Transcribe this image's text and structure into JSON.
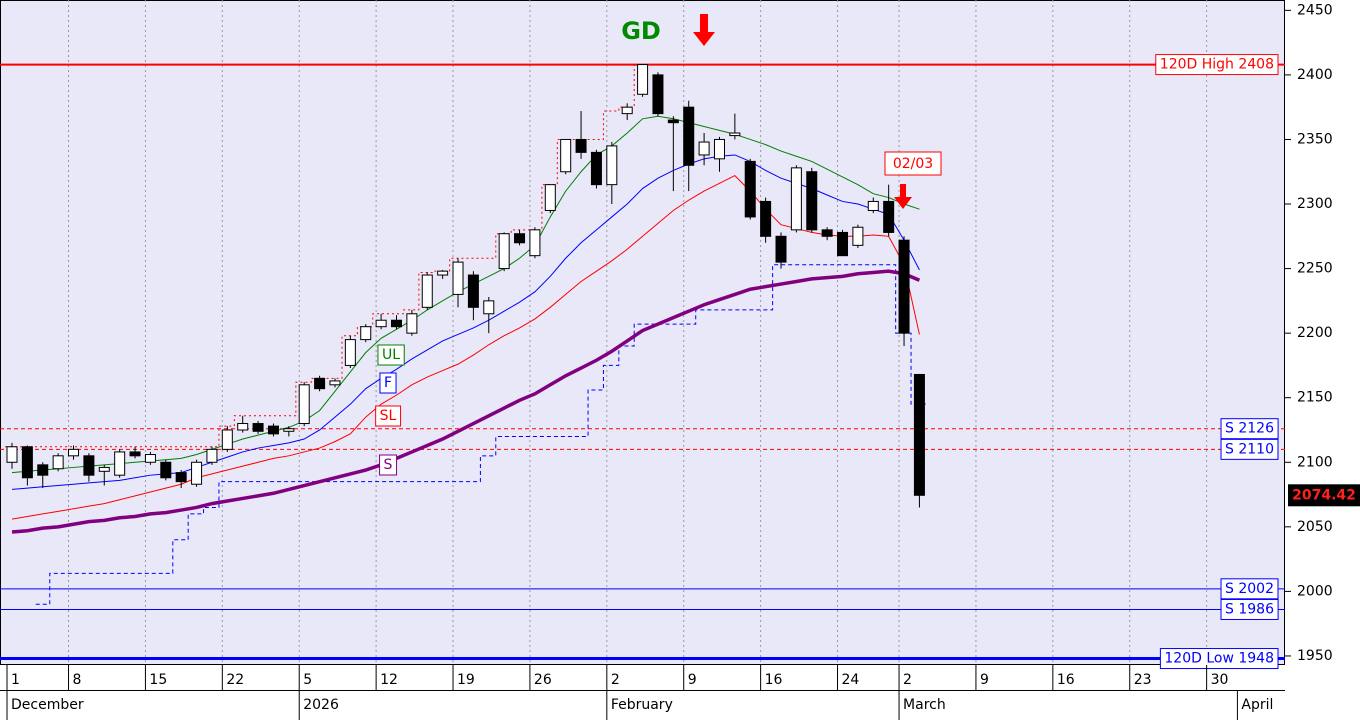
{
  "chart_data": {
    "type": "candlestick",
    "categories": [
      "1",
      null,
      null,
      null,
      "8",
      null,
      null,
      null,
      null,
      "15",
      null,
      null,
      null,
      null,
      "22",
      null,
      null,
      null,
      null,
      "5",
      null,
      null,
      null,
      null,
      "12",
      null,
      null,
      null,
      null,
      "19",
      null,
      null,
      null,
      null,
      "26",
      null,
      null,
      null,
      null,
      "2",
      null,
      null,
      null,
      null,
      "9",
      null,
      null,
      null,
      null,
      "16",
      null,
      null,
      null,
      null,
      "24",
      null,
      null,
      null,
      "2",
      null,
      null,
      null,
      null,
      "9",
      null,
      null,
      null,
      null,
      "16",
      null,
      null,
      null,
      null,
      "23",
      null,
      null,
      null,
      null,
      "30",
      null,
      null
    ],
    "months": [
      "December",
      null,
      null,
      null,
      null,
      null,
      null,
      null,
      null,
      null,
      null,
      null,
      null,
      null,
      null,
      null,
      null,
      null,
      null,
      "2026",
      null,
      null,
      null,
      null,
      null,
      null,
      null,
      null,
      null,
      null,
      null,
      null,
      null,
      null,
      null,
      null,
      null,
      null,
      null,
      "February",
      null,
      null,
      null,
      null,
      null,
      null,
      null,
      null,
      null,
      null,
      null,
      null,
      null,
      null,
      null,
      null,
      null,
      null,
      "March",
      null,
      null,
      null,
      null,
      null,
      null,
      null,
      null,
      null,
      null,
      null,
      null,
      null,
      null,
      null,
      null,
      null,
      null,
      null,
      null,
      null,
      "April"
    ],
    "open": [
      2100,
      2112,
      2098,
      2095,
      2105,
      2105,
      2093,
      2090,
      2108,
      2100,
      2100,
      2092,
      2083,
      2100,
      2110,
      2125,
      2130,
      2128,
      2124,
      2130,
      2165,
      2160,
      2175,
      2195,
      2205,
      2210,
      2200,
      2220,
      2245,
      2230,
      2245,
      2215,
      2250,
      2277,
      2260,
      2295,
      2325,
      2350,
      2340,
      2315,
      2370,
      2385,
      2400,
      2365,
      2375,
      2338,
      2335,
      2353,
      2333,
      2302,
      2275,
      2280,
      2325,
      2280,
      2278,
      2268,
      2295,
      2302,
      2272,
      2168,
      null,
      null,
      null,
      null,
      null,
      null,
      null,
      null,
      null,
      null,
      null,
      null,
      null,
      null,
      null,
      null,
      null,
      null,
      null,
      null,
      null
    ],
    "high": [
      2115,
      2113,
      2100,
      2107,
      2113,
      2107,
      2098,
      2110,
      2112,
      2108,
      2102,
      2094,
      2102,
      2112,
      2128,
      2136,
      2132,
      2130,
      2128,
      2162,
      2167,
      2165,
      2198,
      2207,
      2215,
      2214,
      2218,
      2247,
      2249,
      2258,
      2248,
      2228,
      2278,
      2280,
      2282,
      2315,
      2350,
      2372,
      2342,
      2348,
      2378,
      2408,
      2402,
      2368,
      2380,
      2355,
      2352,
      2370,
      2335,
      2305,
      2278,
      2330,
      2328,
      2282,
      2280,
      2284,
      2305,
      2315,
      2275,
      2168,
      null,
      null,
      null,
      null,
      null,
      null,
      null,
      null,
      null,
      null,
      null,
      null,
      null,
      null,
      null,
      null,
      null,
      null,
      null,
      null,
      null
    ],
    "low": [
      2095,
      2082,
      2080,
      2093,
      2102,
      2085,
      2082,
      2088,
      2103,
      2098,
      2086,
      2080,
      2081,
      2098,
      2108,
      2123,
      2122,
      2120,
      2120,
      2128,
      2155,
      2158,
      2173,
      2193,
      2203,
      2203,
      2198,
      2218,
      2242,
      2220,
      2210,
      2200,
      2248,
      2268,
      2258,
      2293,
      2323,
      2335,
      2312,
      2300,
      2365,
      2383,
      2368,
      2310,
      2310,
      2330,
      2325,
      2350,
      2288,
      2270,
      2250,
      2278,
      2278,
      2272,
      2260,
      2266,
      2293,
      2275,
      2190,
      2065,
      null,
      null,
      null,
      null,
      null,
      null,
      null,
      null,
      null,
      null,
      null,
      null,
      null,
      null,
      null,
      null,
      null,
      null,
      null,
      null,
      null
    ],
    "close": [
      2112,
      2088,
      2090,
      2105,
      2110,
      2090,
      2096,
      2108,
      2105,
      2106,
      2088,
      2085,
      2100,
      2110,
      2125,
      2130,
      2124,
      2122,
      2126,
      2160,
      2157,
      2163,
      2195,
      2205,
      2210,
      2205,
      2215,
      2245,
      2248,
      2255,
      2220,
      2225,
      2277,
      2270,
      2280,
      2315,
      2350,
      2340,
      2315,
      2345,
      2375,
      2408,
      2370,
      2363,
      2330,
      2348,
      2350,
      2355,
      2290,
      2275,
      2255,
      2328,
      2280,
      2275,
      2260,
      2282,
      2302,
      2278,
      2200,
      2074.42,
      null,
      null,
      null,
      null,
      null,
      null,
      null,
      null,
      null,
      null,
      null,
      null,
      null,
      null,
      null,
      null,
      null,
      null,
      null,
      null,
      null
    ],
    "series": [
      {
        "name": "UL",
        "color": "#008000",
        "width": 1,
        "values": [
          2092,
          2093,
          2094,
          2095,
          2096,
          2097,
          2098,
          2099,
          2100,
          2101,
          2102,
          2103,
          2106,
          2110,
          2114,
          2118,
          2121,
          2124,
          2127,
          2132,
          2140,
          2155,
          2170,
          2185,
          2196,
          2203,
          2210,
          2218,
          2225,
          2232,
          2238,
          2244,
          2250,
          2258,
          2268,
          2290,
          2310,
          2325,
          2338,
          2345,
          2355,
          2366,
          2368,
          2366,
          2363,
          2360,
          2357,
          2354,
          2350,
          2346,
          2341,
          2337,
          2333,
          2327,
          2321,
          2315,
          2308,
          2305,
          2300,
          2296,
          null,
          null,
          null,
          null,
          null,
          null,
          null,
          null,
          null,
          null,
          null,
          null,
          null,
          null,
          null,
          null,
          null,
          null,
          null,
          null,
          null
        ]
      },
      {
        "name": "F",
        "color": "#0000ff",
        "width": 1,
        "values": [
          2079,
          2080,
          2081,
          2082,
          2083,
          2084,
          2085,
          2086,
          2088,
          2090,
          2091,
          2092,
          2096,
          2100,
          2104,
          2108,
          2111,
          2113,
          2115,
          2118,
          2125,
          2135,
          2145,
          2157,
          2165,
          2172,
          2180,
          2187,
          2194,
          2199,
          2204,
          2210,
          2217,
          2224,
          2232,
          2244,
          2258,
          2270,
          2280,
          2290,
          2300,
          2312,
          2320,
          2326,
          2331,
          2335,
          2337,
          2338,
          2333,
          2326,
          2320,
          2316,
          2312,
          2307,
          2302,
          2300,
          2296,
          2292,
          2272,
          2249,
          null,
          null,
          null,
          null,
          null,
          null,
          null,
          null,
          null,
          null,
          null,
          null,
          null,
          null,
          null,
          null,
          null,
          null,
          null,
          null,
          null
        ]
      },
      {
        "name": "SL",
        "color": "#ff0000",
        "width": 1,
        "values": [
          2056,
          2058,
          2060,
          2062,
          2064,
          2066,
          2068,
          2071,
          2074,
          2077,
          2080,
          2083,
          2088,
          2091,
          2094,
          2097,
          2100,
          2103,
          2105,
          2108,
          2111,
          2116,
          2122,
          2135,
          2145,
          2152,
          2160,
          2166,
          2171,
          2176,
          2183,
          2191,
          2198,
          2204,
          2211,
          2220,
          2230,
          2240,
          2248,
          2256,
          2265,
          2275,
          2285,
          2295,
          2303,
          2310,
          2316,
          2322,
          2310,
          2296,
          2284,
          2281,
          2278,
          2276,
          2275,
          2275,
          2276,
          2275,
          2253,
          2199,
          null,
          null,
          null,
          null,
          null,
          null,
          null,
          null,
          null,
          null,
          null,
          null,
          null,
          null,
          null,
          null,
          null,
          null,
          null,
          null,
          null
        ]
      },
      {
        "name": "S",
        "color": "#800080",
        "width": 3.5,
        "values": [
          2046,
          2047,
          2049,
          2050,
          2052,
          2054,
          2055,
          2057,
          2058,
          2060,
          2061,
          2063,
          2065,
          2068,
          2070,
          2072,
          2074,
          2076,
          2079,
          2082,
          2085,
          2088,
          2091,
          2094,
          2098,
          2103,
          2108,
          2113,
          2118,
          2124,
          2130,
          2136,
          2142,
          2148,
          2153,
          2160,
          2167,
          2173,
          2179,
          2186,
          2194,
          2202,
          2207,
          2212,
          2217,
          2222,
          2226,
          2230,
          2234,
          2236,
          2238,
          2240,
          2242,
          2243,
          2244,
          2246,
          2247,
          2248,
          2246,
          2241,
          null,
          null,
          null,
          null,
          null,
          null,
          null,
          null,
          null,
          null,
          null,
          null,
          null,
          null,
          null,
          null,
          null,
          null,
          null,
          null,
          null
        ]
      }
    ],
    "overlays": [
      {
        "color": "#ff0000",
        "dash": "2 3",
        "values": [
          2112,
          2112,
          2112,
          2112,
          2112,
          2112,
          2112,
          2112,
          2112,
          2112,
          2112,
          2112,
          2112,
          2112,
          2128,
          2136,
          2136,
          2136,
          2136,
          2162,
          2165,
          2165,
          2198,
          2205,
          2215,
          2215,
          2218,
          2247,
          2248,
          2258,
          2258,
          2258,
          2277,
          2280,
          2280,
          2315,
          2350,
          2350,
          2350,
          2372,
          2375,
          2408,
          2408,
          2408,
          2408,
          2408,
          2408,
          2408,
          2408,
          2408,
          2408,
          2408,
          2408,
          2408,
          2408,
          2408,
          2408,
          2408,
          2408,
          2408,
          null,
          null,
          null,
          null,
          null,
          null,
          null,
          null,
          null,
          null,
          null,
          null,
          null,
          null,
          null,
          null,
          null,
          null,
          null,
          null,
          null
        ]
      },
      {
        "color": "#0000ff",
        "dash": "4 3",
        "values": [
          null,
          null,
          1990,
          2014,
          2014,
          2014,
          2014,
          2014,
          2014,
          2014,
          2014,
          2040,
          2060,
          2065,
          2085,
          2085,
          2085,
          2085,
          2085,
          2085,
          2085,
          2085,
          2085,
          2085,
          2085,
          2085,
          2085,
          2085,
          2085,
          2085,
          2085,
          2105,
          2120,
          2120,
          2120,
          2120,
          2120,
          2120,
          2156,
          2175,
          2190,
          2207,
          2207,
          2207,
          2207,
          2218,
          2218,
          2218,
          2218,
          2218,
          2253,
          2253,
          2253,
          2253,
          2253,
          2253,
          2253,
          2253,
          2200,
          2145,
          null,
          null,
          null,
          null,
          null,
          null,
          null,
          null,
          null,
          null,
          null,
          null,
          null,
          null,
          null,
          null,
          null,
          null,
          null,
          null,
          null
        ]
      }
    ],
    "levels": [
      {
        "label": "120D High 2408",
        "value": 2408,
        "color": "#ff0000",
        "text_color": "#ff0000",
        "width": 2,
        "dash": "none"
      },
      {
        "label": "S 2126",
        "value": 2126,
        "color": "#ff0000",
        "text_color": "#0000ff",
        "width": 1,
        "dash": "4 3"
      },
      {
        "label": "S 2110",
        "value": 2110,
        "color": "#ff0000",
        "text_color": "#0000ff",
        "width": 1,
        "dash": "4 3"
      },
      {
        "label": "S 2002",
        "value": 2002,
        "color": "#0000ff",
        "text_color": "#0000ff",
        "width": 1,
        "dash": "none"
      },
      {
        "label": "S 1986",
        "value": 1986,
        "color": "#0000ff",
        "text_color": "#0000ff",
        "width": 1,
        "dash": "none"
      },
      {
        "label": "120D Low 1948",
        "value": 1948,
        "color": "#0000ff",
        "text_color": "#0000ff",
        "width": 3,
        "dash": "none"
      }
    ],
    "annotations": {
      "signal": "GD",
      "date": "02/03"
    },
    "ylim": [
      1943,
      2458
    ],
    "yticks": [
      1950,
      2000,
      2050,
      2100,
      2150,
      2200,
      2250,
      2300,
      2350,
      2400,
      2450
    ],
    "xgrid": true
  }
}
